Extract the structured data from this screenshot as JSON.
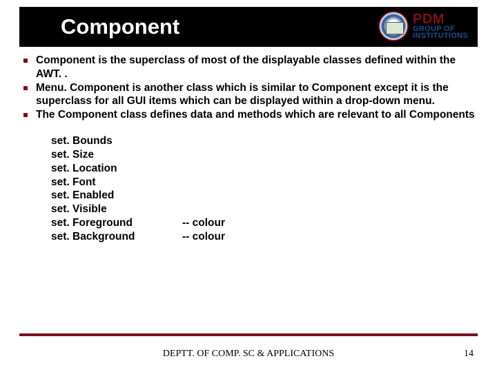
{
  "header": {
    "title": "Component",
    "logo": {
      "line1": "PDM",
      "line2": "GROUP OF",
      "line3": "INSTITUTIONS"
    }
  },
  "bullets": [
    "Component is the superclass of most of the displayable classes defined within the AWT. .",
    "Menu. Component is another class which is similar to Component except it is the superclass for all GUI items which can be displayed within a drop-down menu.",
    "The Component class defines data and methods which are relevant to all Components"
  ],
  "methods": [
    {
      "name": "set. Bounds",
      "note": ""
    },
    {
      "name": "set. Size",
      "note": ""
    },
    {
      "name": "set. Location",
      "note": ""
    },
    {
      "name": "set. Font",
      "note": ""
    },
    {
      "name": "set. Enabled",
      "note": ""
    },
    {
      "name": "set. Visible",
      "note": ""
    },
    {
      "name": "set. Foreground",
      "note": "-- colour"
    },
    {
      "name": "set. Background",
      "note": "-- colour"
    }
  ],
  "footer": {
    "dept": "DEPTT. OF COMP. SC & APPLICATIONS",
    "page": "14"
  },
  "colors": {
    "header_bg": "#000000",
    "title_fg": "#ffffff",
    "accent": "#7a1018",
    "logo_blue": "#1a4d8f",
    "text": "#000000",
    "bg": "#ffffff"
  }
}
